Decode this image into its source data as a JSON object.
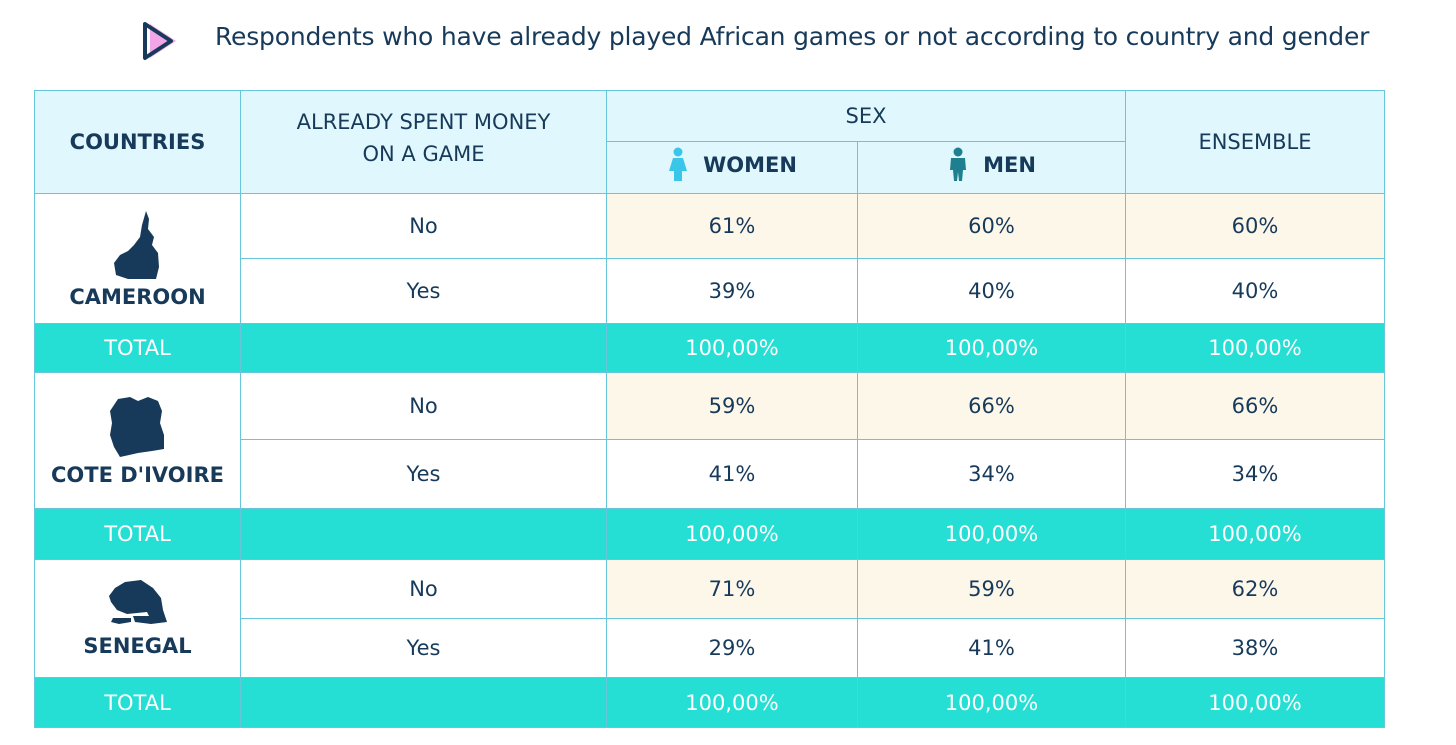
{
  "title": "Respondents who have already played African games or not according to country and gender",
  "colors": {
    "navy": "#173a5a",
    "header_bg": "#e0f8fd",
    "cream": "#fdf7ea",
    "total_bg": "#25dfd4",
    "women_icon": "#39c6e8",
    "men_icon": "#1d7f8f",
    "logo_pink": "#f2a6e8"
  },
  "chart_data": {
    "type": "table",
    "title": "Respondents who have already played African games or not according to country and gender",
    "headers": {
      "countries": "COUNTRIES",
      "spent_money": "ALREADY SPENT MONEY ON A GAME",
      "sex": "SEX",
      "women": "WOMEN",
      "men": "MEN",
      "ensemble": "ENSEMBLE"
    },
    "countries": [
      {
        "name": "CAMEROON",
        "icon": "cameroon-map-icon",
        "rows": [
          {
            "answer": "No",
            "women": "61%",
            "men": "60%",
            "ensemble": "60%"
          },
          {
            "answer": "Yes",
            "women": "39%",
            "men": "40%",
            "ensemble": "40%"
          }
        ],
        "total": {
          "label": "TOTAL",
          "women": "100,00%",
          "men": "100,00%",
          "ensemble": "100,00%"
        }
      },
      {
        "name": "COTE D'IVOIRE",
        "icon": "cote-divoire-map-icon",
        "rows": [
          {
            "answer": "No",
            "women": "59%",
            "men": "66%",
            "ensemble": "66%"
          },
          {
            "answer": "Yes",
            "women": "41%",
            "men": "34%",
            "ensemble": "34%"
          }
        ],
        "total": {
          "label": "TOTAL",
          "women": "100,00%",
          "men": "100,00%",
          "ensemble": "100,00%"
        }
      },
      {
        "name": "SENEGAL",
        "icon": "senegal-map-icon",
        "rows": [
          {
            "answer": "No",
            "women": "71%",
            "men": "59%",
            "ensemble": "62%"
          },
          {
            "answer": "Yes",
            "women": "29%",
            "men": "41%",
            "ensemble": "38%"
          }
        ],
        "total": {
          "label": "TOTAL",
          "women": "100,00%",
          "men": "100,00%",
          "ensemble": "100,00%"
        }
      }
    ]
  }
}
